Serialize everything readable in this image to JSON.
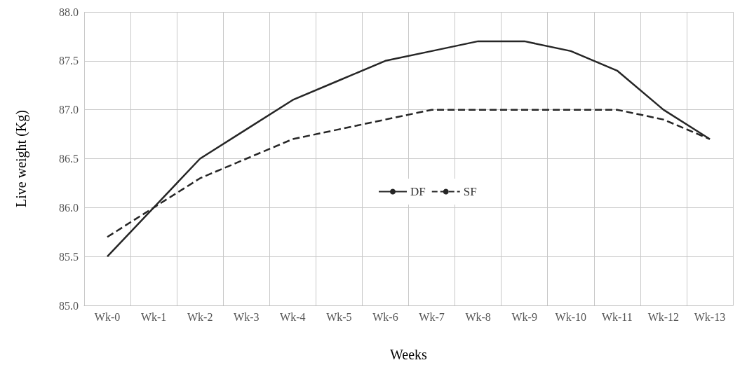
{
  "chart_data": {
    "type": "line",
    "xlabel": "Weeks",
    "ylabel": "Live weight (Kg)",
    "categories": [
      "Wk-0",
      "Wk-1",
      "Wk-2",
      "Wk-3",
      "Wk-4",
      "Wk-5",
      "Wk-6",
      "Wk-7",
      "Wk-8",
      "Wk-9",
      "Wk-10",
      "Wk-11",
      "Wk-12",
      "Wk-13"
    ],
    "series": [
      {
        "name": "DF",
        "color": "#262626",
        "line_style": "solid",
        "values": [
          85.5,
          86.0,
          86.5,
          86.8,
          87.1,
          87.3,
          87.5,
          87.6,
          87.7,
          87.7,
          87.6,
          87.4,
          87.0,
          86.7
        ]
      },
      {
        "name": "SF",
        "color": "#262626",
        "line_style": "dashed",
        "values": [
          85.7,
          86.0,
          86.3,
          86.5,
          86.7,
          86.8,
          86.9,
          87.0,
          87.0,
          87.0,
          87.0,
          87.0,
          86.9,
          86.7
        ]
      }
    ],
    "ylim": [
      85.0,
      88.0
    ],
    "yticks": [
      {
        "value": 85,
        "label": "85.0"
      },
      85.5,
      {
        "value": 86,
        "label": "86.0"
      },
      86.5,
      {
        "value": 87,
        "label": "87.0"
      },
      87.5,
      {
        "value": 88,
        "label": "88.0"
      }
    ],
    "grid": true,
    "legend": "center",
    "marker": "none"
  }
}
